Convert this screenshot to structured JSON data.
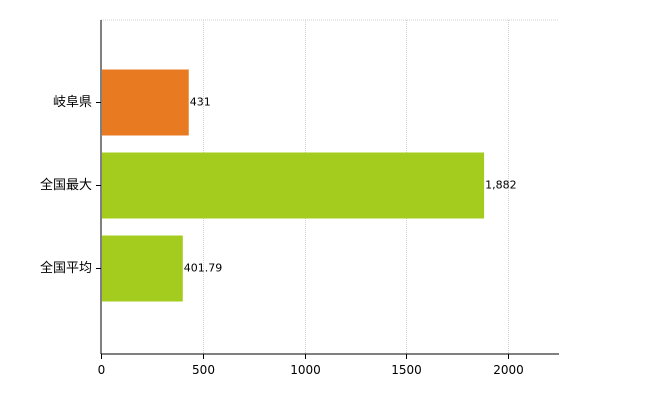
{
  "chart_data": {
    "type": "bar",
    "orientation": "horizontal",
    "categories": [
      "岐阜県",
      "全国最大",
      "全国平均"
    ],
    "values": [
      431,
      1882,
      401.79
    ],
    "value_labels": [
      "431",
      "1,882",
      "401.79"
    ],
    "colors": [
      "#E87A22",
      "#A3CC1E",
      "#A3CC1E"
    ],
    "xlim": [
      0,
      2250
    ],
    "xticks": [
      0,
      500,
      1000,
      1500,
      2000
    ],
    "xtick_labels": [
      "0",
      "500",
      "1000",
      "1500",
      "2000"
    ],
    "grid": true,
    "legend": "none"
  }
}
